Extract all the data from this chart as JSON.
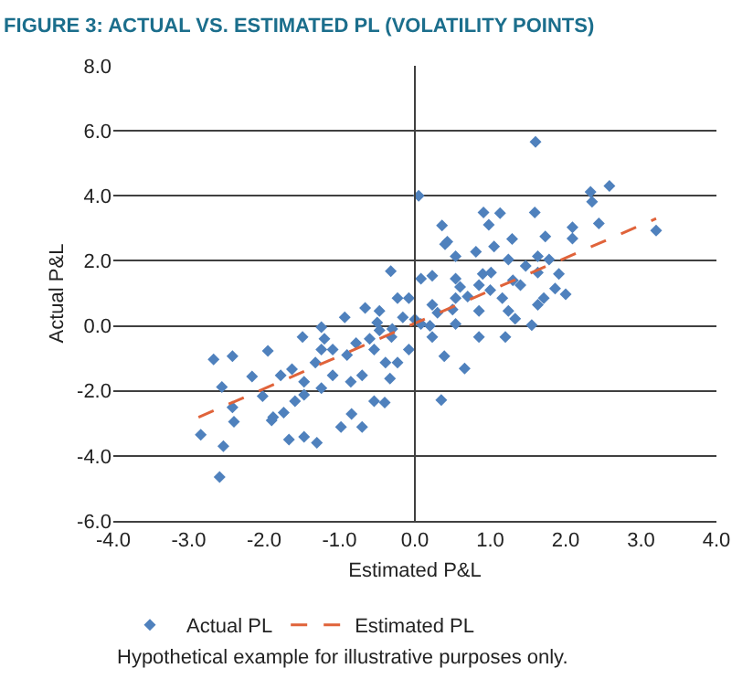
{
  "chart_data": {
    "type": "scatter",
    "title": "FIGURE 3: ACTUAL VS. ESTIMATED PL (VOLATILITY POINTS)",
    "xlabel": "Estimated P&L",
    "ylabel": "Actual P&L",
    "xlim": [
      -4,
      4
    ],
    "ylim": [
      -6,
      8
    ],
    "xticks": [
      {
        "value": -4,
        "label": "-4.0"
      },
      {
        "value": -3,
        "label": "-3.0"
      },
      {
        "value": -2,
        "label": "-2.0"
      },
      {
        "value": -1,
        "label": "-1.0"
      },
      {
        "value": 0,
        "label": "0.0"
      },
      {
        "value": 1,
        "label": "1.0"
      },
      {
        "value": 2,
        "label": "2.0"
      },
      {
        "value": 3,
        "label": "3.0"
      },
      {
        "value": 4,
        "label": "4.0"
      }
    ],
    "yticks": [
      {
        "value": -6,
        "label": "-6.0"
      },
      {
        "value": -4,
        "label": "-4.0"
      },
      {
        "value": -2,
        "label": "-2.0"
      },
      {
        "value": 0,
        "label": "0.0"
      },
      {
        "value": 2,
        "label": "2.0"
      },
      {
        "value": 4,
        "label": "4.0"
      },
      {
        "value": 6,
        "label": "6.0"
      },
      {
        "value": 8,
        "label": "8.0"
      }
    ],
    "grid": "y",
    "legend": "bottom left",
    "ref_lines": [
      {
        "axis": "x",
        "value": 0,
        "color": "#404040"
      }
    ],
    "series": [
      {
        "name": "Actual PL",
        "marker": "diamond",
        "color": "#4f81bd",
        "x": [
          1.6,
          0.05,
          2.33,
          2.35,
          2.58,
          2.44,
          3.2,
          0.91,
          1.13,
          1.59,
          0.98,
          0.36,
          0.43,
          0.4,
          1.73,
          2.09,
          2.09,
          1.29,
          -0.32,
          1.91,
          2.0,
          1.86,
          1.71,
          1.55,
          1.2,
          1.33,
          0.66,
          0.35,
          -2.67,
          -2.42,
          -2.56,
          -2.42,
          -2.4,
          -2.84,
          -2.54,
          -2.59,
          -1.9,
          -1.88,
          -1.67,
          -1.47,
          -1.3,
          -0.98,
          -0.7,
          -0.84,
          -0.54,
          -0.4,
          -0.33,
          -1.95,
          -2.16,
          -2.02,
          -1.74,
          -1.59,
          -1.47,
          -1.24,
          -1.49,
          -1.24,
          -0.93,
          -0.66,
          -0.47,
          -0.23,
          0.08,
          0.23,
          0.54,
          0.81,
          1.05,
          1.24,
          1.47,
          1.63,
          1.01,
          0.85,
          0.54,
          0.23,
          -0.16,
          -0.47,
          -0.78,
          -1.09,
          -1.32,
          -1.63,
          -1.78,
          -0.7,
          -0.39,
          -0.08,
          0.23,
          0.54,
          0.85,
          1.16,
          1.4,
          1.63,
          0.08,
          -0.31,
          0.85,
          0.39,
          1.24,
          -0.85,
          -1.09,
          -0.54,
          0.54,
          -0.08,
          -0.23,
          -1.24,
          -1.47,
          1.63,
          1.78,
          0.3,
          0.5,
          0.0,
          -0.3,
          -0.6,
          0.7,
          1.0,
          -0.9,
          0.2,
          0.9,
          -0.5,
          0.6,
          -1.2,
          1.3
        ],
        "values": [
          5.66,
          4.0,
          4.12,
          3.82,
          4.3,
          3.15,
          2.93,
          3.49,
          3.47,
          3.49,
          3.11,
          3.09,
          2.59,
          2.51,
          2.75,
          3.03,
          2.69,
          2.67,
          1.68,
          1.6,
          0.97,
          1.15,
          0.85,
          0.02,
          -0.34,
          0.22,
          -1.31,
          -2.28,
          -1.03,
          -0.93,
          -1.88,
          -2.51,
          -2.95,
          -3.35,
          -3.7,
          -4.65,
          -2.91,
          -2.81,
          -3.5,
          -3.41,
          -3.6,
          -3.11,
          -3.11,
          -2.71,
          -2.32,
          -2.36,
          -1.62,
          -0.77,
          -1.56,
          -2.16,
          -2.67,
          -2.32,
          -2.12,
          -1.92,
          -0.34,
          -0.04,
          0.26,
          0.55,
          0.46,
          0.85,
          1.45,
          1.54,
          2.14,
          2.28,
          2.44,
          2.04,
          1.84,
          2.14,
          1.64,
          1.25,
          0.85,
          0.65,
          0.26,
          -0.14,
          -0.53,
          -0.73,
          -1.13,
          -1.33,
          -1.52,
          -1.52,
          -1.13,
          -0.73,
          -0.34,
          0.06,
          0.46,
          0.85,
          1.25,
          1.64,
          0.06,
          -0.34,
          -0.34,
          -0.93,
          0.46,
          -1.72,
          -1.52,
          -0.73,
          1.45,
          0.85,
          -1.13,
          -0.73,
          -1.72,
          0.65,
          2.04,
          0.4,
          0.5,
          0.2,
          -0.1,
          -0.4,
          0.9,
          1.1,
          -0.9,
          0.0,
          1.6,
          0.1,
          1.2,
          -0.4,
          1.4
        ]
      },
      {
        "name": "Estimated PL",
        "type": "line",
        "line_style": "dashed",
        "marker": "none",
        "color": "#e0633a",
        "x": [
          -2.87,
          3.2
        ],
        "values": [
          -2.81,
          3.3
        ]
      }
    ],
    "annotations": [
      "Hypothetical example for illustrative purposes only."
    ]
  }
}
